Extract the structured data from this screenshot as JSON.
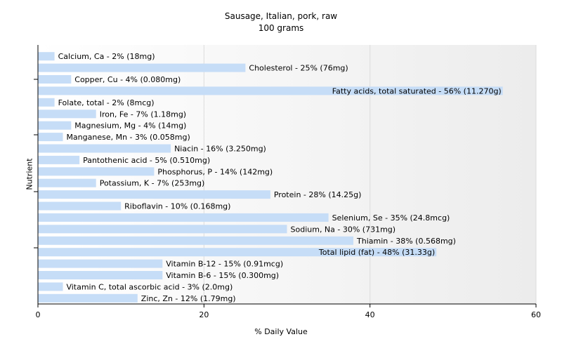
{
  "chart_data": {
    "type": "bar",
    "orientation": "horizontal",
    "title": "Sausage, Italian, pork, raw",
    "subtitle": "100 grams",
    "xlabel": "% Daily Value",
    "ylabel": "Nutrient",
    "xlim": [
      0,
      60
    ],
    "xticks": [
      0,
      20,
      40,
      60
    ],
    "grid": true,
    "bar_color": "#c6ddf7",
    "categories": [
      "Calcium, Ca",
      "Cholesterol",
      "Copper, Cu",
      "Fatty acids, total saturated",
      "Folate, total",
      "Iron, Fe",
      "Magnesium, Mg",
      "Manganese, Mn",
      "Niacin",
      "Pantothenic acid",
      "Phosphorus, P",
      "Potassium, K",
      "Protein",
      "Riboflavin",
      "Selenium, Se",
      "Sodium, Na",
      "Thiamin",
      "Total lipid (fat)",
      "Vitamin B-12",
      "Vitamin B-6",
      "Vitamin C, total ascorbic acid",
      "Zinc, Zn"
    ],
    "values": [
      2,
      25,
      4,
      56,
      2,
      7,
      4,
      3,
      16,
      5,
      14,
      7,
      28,
      10,
      35,
      30,
      38,
      48,
      15,
      15,
      3,
      12
    ],
    "labels": [
      "Calcium, Ca - 2% (18mg)",
      "Cholesterol - 25% (76mg)",
      "Copper, Cu - 4% (0.080mg)",
      "Fatty acids, total saturated - 56% (11.270g)",
      "Folate, total - 2% (8mcg)",
      "Iron, Fe - 7% (1.18mg)",
      "Magnesium, Mg - 4% (14mg)",
      "Manganese, Mn - 3% (0.058mg)",
      "Niacin - 16% (3.250mg)",
      "Pantothenic acid - 5% (0.510mg)",
      "Phosphorus, P - 14% (142mg)",
      "Potassium, K - 7% (253mg)",
      "Protein - 28% (14.25g)",
      "Riboflavin - 10% (0.168mg)",
      "Selenium, Se - 35% (24.8mcg)",
      "Sodium, Na - 30% (731mg)",
      "Thiamin - 38% (0.568mg)",
      "Total lipid (fat) - 48% (31.33g)",
      "Vitamin B-12 - 15% (0.91mcg)",
      "Vitamin B-6 - 15% (0.300mg)",
      "Vitamin C, total ascorbic acid - 3% (2.0mg)",
      "Zinc, Zn - 12% (1.79mg)"
    ]
  }
}
